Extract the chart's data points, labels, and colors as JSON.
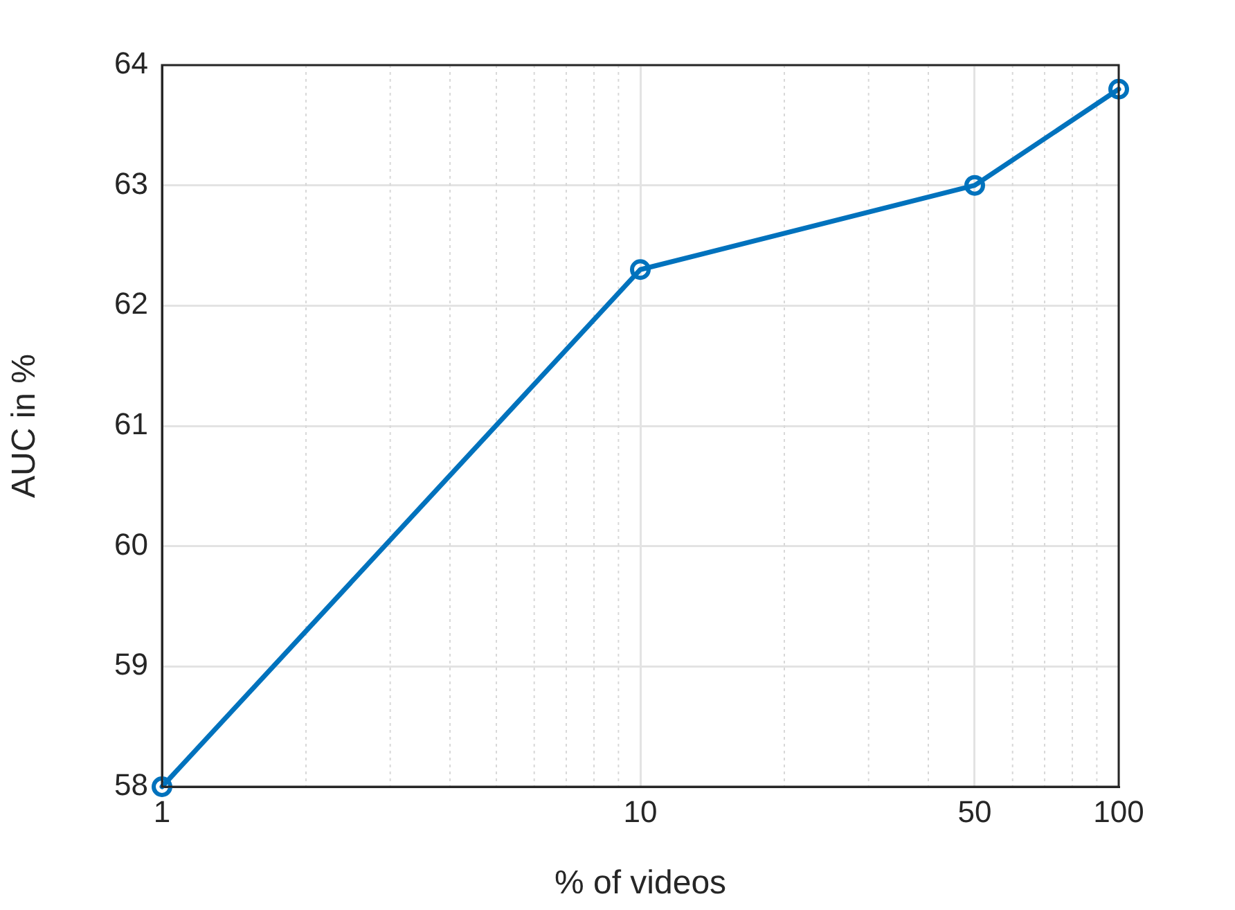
{
  "chart_data": {
    "type": "line",
    "xlabel": "% of videos",
    "ylabel": "AUC in %",
    "x": [
      1,
      10,
      50,
      100
    ],
    "series": [
      {
        "color": "#0072bd",
        "values": [
          58,
          62.3,
          63,
          63.8
        ]
      }
    ],
    "log": "x",
    "xlim": [
      1,
      100
    ],
    "xticks": [
      1,
      10,
      50,
      100
    ],
    "ylim": [
      58,
      64
    ],
    "yticks": [
      58,
      59,
      60,
      61,
      62,
      63,
      64
    ],
    "grid": true,
    "legend": false,
    "marker": "circle",
    "line_style": "solid"
  }
}
